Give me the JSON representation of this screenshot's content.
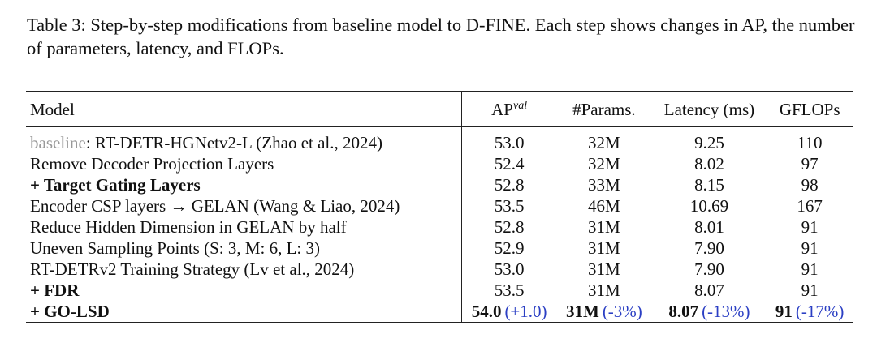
{
  "caption": "Table 3: Step-by-step modifications from baseline model to D-FINE. Each step shows changes in AP, the number of parameters, latency, and FLOPs.",
  "table": {
    "header": [
      "Model",
      {
        "base": "AP",
        "sup": "val"
      },
      "#Params.",
      "Latency (ms)",
      "GFLOPs"
    ],
    "rows": [
      {
        "model": {
          "gray": "baseline",
          "rest": ": RT-DETR-HGNetv2-L (Zhao et al., 2024)"
        },
        "cells": [
          "53.0",
          "32M",
          "9.25",
          "110"
        ]
      },
      {
        "model": "Remove Decoder Projection Layers",
        "cells": [
          "52.4",
          "32M",
          "8.02",
          "97"
        ]
      },
      {
        "model": "+ Target Gating Layers",
        "bold_model": true,
        "cells": [
          "52.8",
          "33M",
          "8.15",
          "98"
        ]
      },
      {
        "model": "Encoder CSP layers → GELAN (Wang & Liao, 2024)",
        "cells": [
          "53.5",
          "46M",
          "10.69",
          "167"
        ]
      },
      {
        "model": "Reduce Hidden Dimension in GELAN by half",
        "cells": [
          "52.8",
          "31M",
          "8.01",
          "91"
        ]
      },
      {
        "model": "Uneven Sampling Points (S: 3, M: 6, L: 3)",
        "cells": [
          "52.9",
          "31M",
          "7.90",
          "91"
        ]
      },
      {
        "model": "RT-DETRv2 Training Strategy (Lv et al., 2024)",
        "cells": [
          "53.0",
          "31M",
          "7.90",
          "91"
        ]
      },
      {
        "model": "+ FDR",
        "bold_model": true,
        "cells": [
          "53.5",
          "31M",
          "8.07",
          "91"
        ]
      },
      {
        "model": "+ GO-LSD",
        "bold_model": true,
        "cells": [
          {
            "value": "54.0",
            "delta": "(+1.0)"
          },
          {
            "value": "31M",
            "delta": "(-3%)"
          },
          {
            "value": "8.07",
            "delta": "(-13%)"
          },
          {
            "value": "91",
            "delta": "(-17%)"
          }
        ]
      }
    ]
  }
}
